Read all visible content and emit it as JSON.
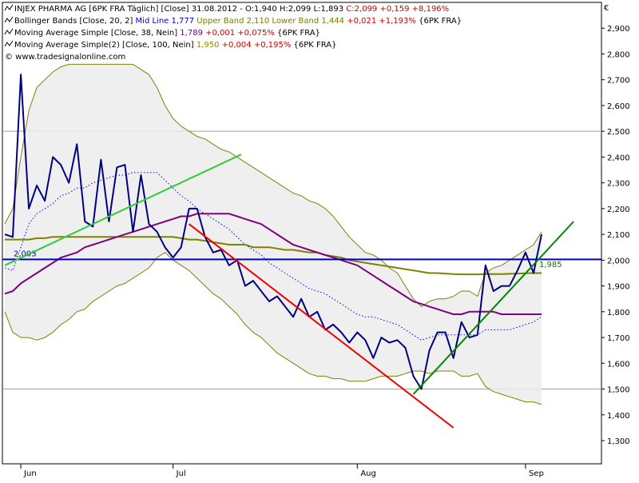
{
  "chart_data": {
    "type": "line",
    "title": "",
    "currency": "€",
    "watermark": "© www.tradesignalonline.com",
    "legend": [
      {
        "parts": [
          {
            "text": "INJEX PHARMA AG [6PK FRA  Täglich] [Close] 31.08.2012 - O:1,940 H:2,099 L:1,893 ",
            "color": "#000000"
          },
          {
            "text": "C:2,099 +0,159 +8,196%",
            "color": "#cc0000"
          }
        ]
      },
      {
        "parts": [
          {
            "text": "Bollinger Bands [Close, 20, 2] ",
            "color": "#000000"
          },
          {
            "text": "Mid Line 1,777",
            "color": "#0000cc"
          },
          {
            "text": " Upper Band 2,110 Lower Band 1,444 ",
            "color": "#7a7a00"
          },
          {
            "text": "+0,021 +1,193%",
            "color": "#cc0000"
          },
          {
            "text": " {6PK FRA}",
            "color": "#000000"
          }
        ]
      },
      {
        "parts": [
          {
            "text": "Moving Average Simple [Close, 38, Nein] ",
            "color": "#000000"
          },
          {
            "text": "1,789",
            "color": "#800080"
          },
          {
            "text": " +0,001 +0,075%",
            "color": "#cc0000"
          },
          {
            "text": " {6PK FRA}",
            "color": "#000000"
          }
        ]
      },
      {
        "parts": [
          {
            "text": "Moving Average Simple(2) [Close, 100, Nein] ",
            "color": "#000000"
          },
          {
            "text": "1,950",
            "color": "#8b8b00"
          },
          {
            "text": " +0,004 +0,195%",
            "color": "#cc0000"
          },
          {
            "text": " {6PK FRA}",
            "color": "#000000"
          }
        ]
      }
    ],
    "y_axis": {
      "min": 1.21,
      "max": 3.0,
      "ticks": [
        "2,900",
        "2,800",
        "2,700",
        "2,600",
        "2,500",
        "2,400",
        "2,300",
        "2,200",
        "2,100",
        "2,000",
        "1,900",
        "1,800",
        "1,700",
        "1,600",
        "1,500",
        "1,400",
        "1,300"
      ],
      "tick_values": [
        2.9,
        2.8,
        2.7,
        2.6,
        2.5,
        2.4,
        2.3,
        2.2,
        2.1,
        2.0,
        1.9,
        1.8,
        1.7,
        1.6,
        1.5,
        1.4,
        1.3
      ],
      "grid_levels": [
        2.5,
        1.5
      ]
    },
    "x_axis": {
      "min": 0,
      "max": 67,
      "labels": [
        {
          "text": "Jun",
          "index": 2
        },
        {
          "text": "Jul",
          "index": 21
        },
        {
          "text": "Aug",
          "index": 44
        },
        {
          "text": "Sep",
          "index": 65
        }
      ]
    },
    "series": [
      {
        "key": "close",
        "color": "#000080",
        "values": [
          2.1,
          2.09,
          2.72,
          2.2,
          2.29,
          2.23,
          2.4,
          2.37,
          2.3,
          2.45,
          2.15,
          2.13,
          2.39,
          2.15,
          2.36,
          2.37,
          2.11,
          2.33,
          2.14,
          2.11,
          2.05,
          2.01,
          2.05,
          2.2,
          2.2,
          2.09,
          2.03,
          2.04,
          1.98,
          2.0,
          1.9,
          1.92,
          1.88,
          1.84,
          1.86,
          1.82,
          1.78,
          1.85,
          1.78,
          1.8,
          1.73,
          1.75,
          1.72,
          1.68,
          1.72,
          1.69,
          1.62,
          1.7,
          1.68,
          1.69,
          1.66,
          1.55,
          1.5,
          1.65,
          1.72,
          1.72,
          1.62,
          1.76,
          1.7,
          1.71,
          1.98,
          1.88,
          1.9,
          1.9,
          1.96,
          2.03,
          1.95,
          2.1
        ]
      },
      {
        "key": "bb_upper",
        "color": "#808000",
        "values": [
          2.14,
          2.2,
          2.4,
          2.58,
          2.67,
          2.7,
          2.73,
          2.75,
          2.76,
          2.76,
          2.76,
          2.76,
          2.76,
          2.76,
          2.76,
          2.76,
          2.76,
          2.74,
          2.72,
          2.67,
          2.6,
          2.55,
          2.52,
          2.5,
          2.48,
          2.47,
          2.45,
          2.43,
          2.42,
          2.4,
          2.38,
          2.36,
          2.34,
          2.32,
          2.3,
          2.28,
          2.26,
          2.25,
          2.23,
          2.22,
          2.2,
          2.17,
          2.13,
          2.09,
          2.06,
          2.03,
          2.02,
          2.0,
          1.97,
          1.95,
          1.9,
          1.85,
          1.82,
          1.84,
          1.85,
          1.85,
          1.86,
          1.88,
          1.88,
          1.86,
          1.95,
          1.97,
          1.98,
          2.0,
          2.02,
          2.04,
          2.06,
          2.11
        ]
      },
      {
        "key": "bb_lower",
        "color": "#808000",
        "values": [
          1.8,
          1.72,
          1.7,
          1.7,
          1.69,
          1.7,
          1.72,
          1.75,
          1.77,
          1.8,
          1.81,
          1.84,
          1.86,
          1.88,
          1.9,
          1.91,
          1.93,
          1.95,
          1.97,
          2.01,
          2.03,
          2.0,
          1.98,
          1.96,
          1.93,
          1.9,
          1.87,
          1.85,
          1.82,
          1.79,
          1.75,
          1.72,
          1.7,
          1.67,
          1.64,
          1.62,
          1.6,
          1.58,
          1.56,
          1.55,
          1.55,
          1.54,
          1.54,
          1.53,
          1.53,
          1.53,
          1.54,
          1.55,
          1.55,
          1.55,
          1.56,
          1.57,
          1.57,
          1.56,
          1.57,
          1.57,
          1.57,
          1.55,
          1.55,
          1.56,
          1.51,
          1.49,
          1.48,
          1.47,
          1.46,
          1.45,
          1.45,
          1.44
        ]
      },
      {
        "key": "bb_mid",
        "color": "#0000ff",
        "values": [
          1.97,
          1.96,
          2.05,
          2.14,
          2.18,
          2.2,
          2.22,
          2.25,
          2.26,
          2.28,
          2.28,
          2.3,
          2.31,
          2.32,
          2.33,
          2.33,
          2.34,
          2.34,
          2.34,
          2.34,
          2.31,
          2.28,
          2.25,
          2.23,
          2.2,
          2.18,
          2.16,
          2.14,
          2.12,
          2.09,
          2.06,
          2.04,
          2.02,
          1.99,
          1.97,
          1.95,
          1.93,
          1.91,
          1.89,
          1.88,
          1.87,
          1.85,
          1.83,
          1.81,
          1.79,
          1.78,
          1.78,
          1.77,
          1.76,
          1.75,
          1.73,
          1.71,
          1.69,
          1.7,
          1.71,
          1.71,
          1.71,
          1.71,
          1.71,
          1.71,
          1.73,
          1.73,
          1.73,
          1.73,
          1.74,
          1.75,
          1.76,
          1.78
        ]
      },
      {
        "key": "ma38",
        "color": "#800080",
        "values": [
          1.87,
          1.88,
          1.91,
          1.93,
          1.95,
          1.97,
          1.99,
          2.01,
          2.02,
          2.03,
          2.05,
          2.06,
          2.07,
          2.08,
          2.09,
          2.1,
          2.11,
          2.12,
          2.13,
          2.14,
          2.15,
          2.16,
          2.17,
          2.17,
          2.18,
          2.18,
          2.18,
          2.18,
          2.18,
          2.17,
          2.16,
          2.15,
          2.14,
          2.12,
          2.1,
          2.08,
          2.06,
          2.05,
          2.04,
          2.03,
          2.02,
          2.01,
          2.0,
          1.99,
          1.98,
          1.96,
          1.94,
          1.92,
          1.9,
          1.88,
          1.86,
          1.84,
          1.83,
          1.82,
          1.81,
          1.8,
          1.79,
          1.79,
          1.8,
          1.8,
          1.8,
          1.8,
          1.79,
          1.79,
          1.79,
          1.79,
          1.79,
          1.79
        ]
      },
      {
        "key": "ma100",
        "color": "#808000",
        "values": [
          2.08,
          2.08,
          2.08,
          2.08,
          2.085,
          2.085,
          2.09,
          2.09,
          2.09,
          2.09,
          2.09,
          2.09,
          2.09,
          2.09,
          2.09,
          2.09,
          2.09,
          2.09,
          2.09,
          2.09,
          2.09,
          2.09,
          2.085,
          2.08,
          2.08,
          2.075,
          2.07,
          2.065,
          2.06,
          2.06,
          2.06,
          2.05,
          2.05,
          2.05,
          2.045,
          2.04,
          2.04,
          2.035,
          2.03,
          2.03,
          2.02,
          2.015,
          2.01,
          2.0,
          1.995,
          1.99,
          1.985,
          1.98,
          1.975,
          1.97,
          1.965,
          1.96,
          1.955,
          1.95,
          1.95,
          1.948,
          1.946,
          1.945,
          1.945,
          1.945,
          1.946,
          1.946,
          1.946,
          1.947,
          1.948,
          1.949,
          1.95,
          1.95
        ]
      }
    ],
    "hline": {
      "value": 2.003,
      "label": "2,003",
      "color": "#0000cc"
    },
    "trendlines": [
      {
        "color": "#33cc33",
        "from": [
          0,
          1.98
        ],
        "to": [
          29.5,
          2.41
        ]
      },
      {
        "color": "#ee0000",
        "from": [
          23,
          2.14
        ],
        "to": [
          56,
          1.35
        ]
      },
      {
        "color": "#008800",
        "from": [
          51,
          1.48
        ],
        "to": [
          71,
          2.15
        ]
      }
    ],
    "annotations": [
      {
        "text": "1,985",
        "x": 66.5,
        "y": 1.985,
        "color": "#008800"
      }
    ]
  }
}
